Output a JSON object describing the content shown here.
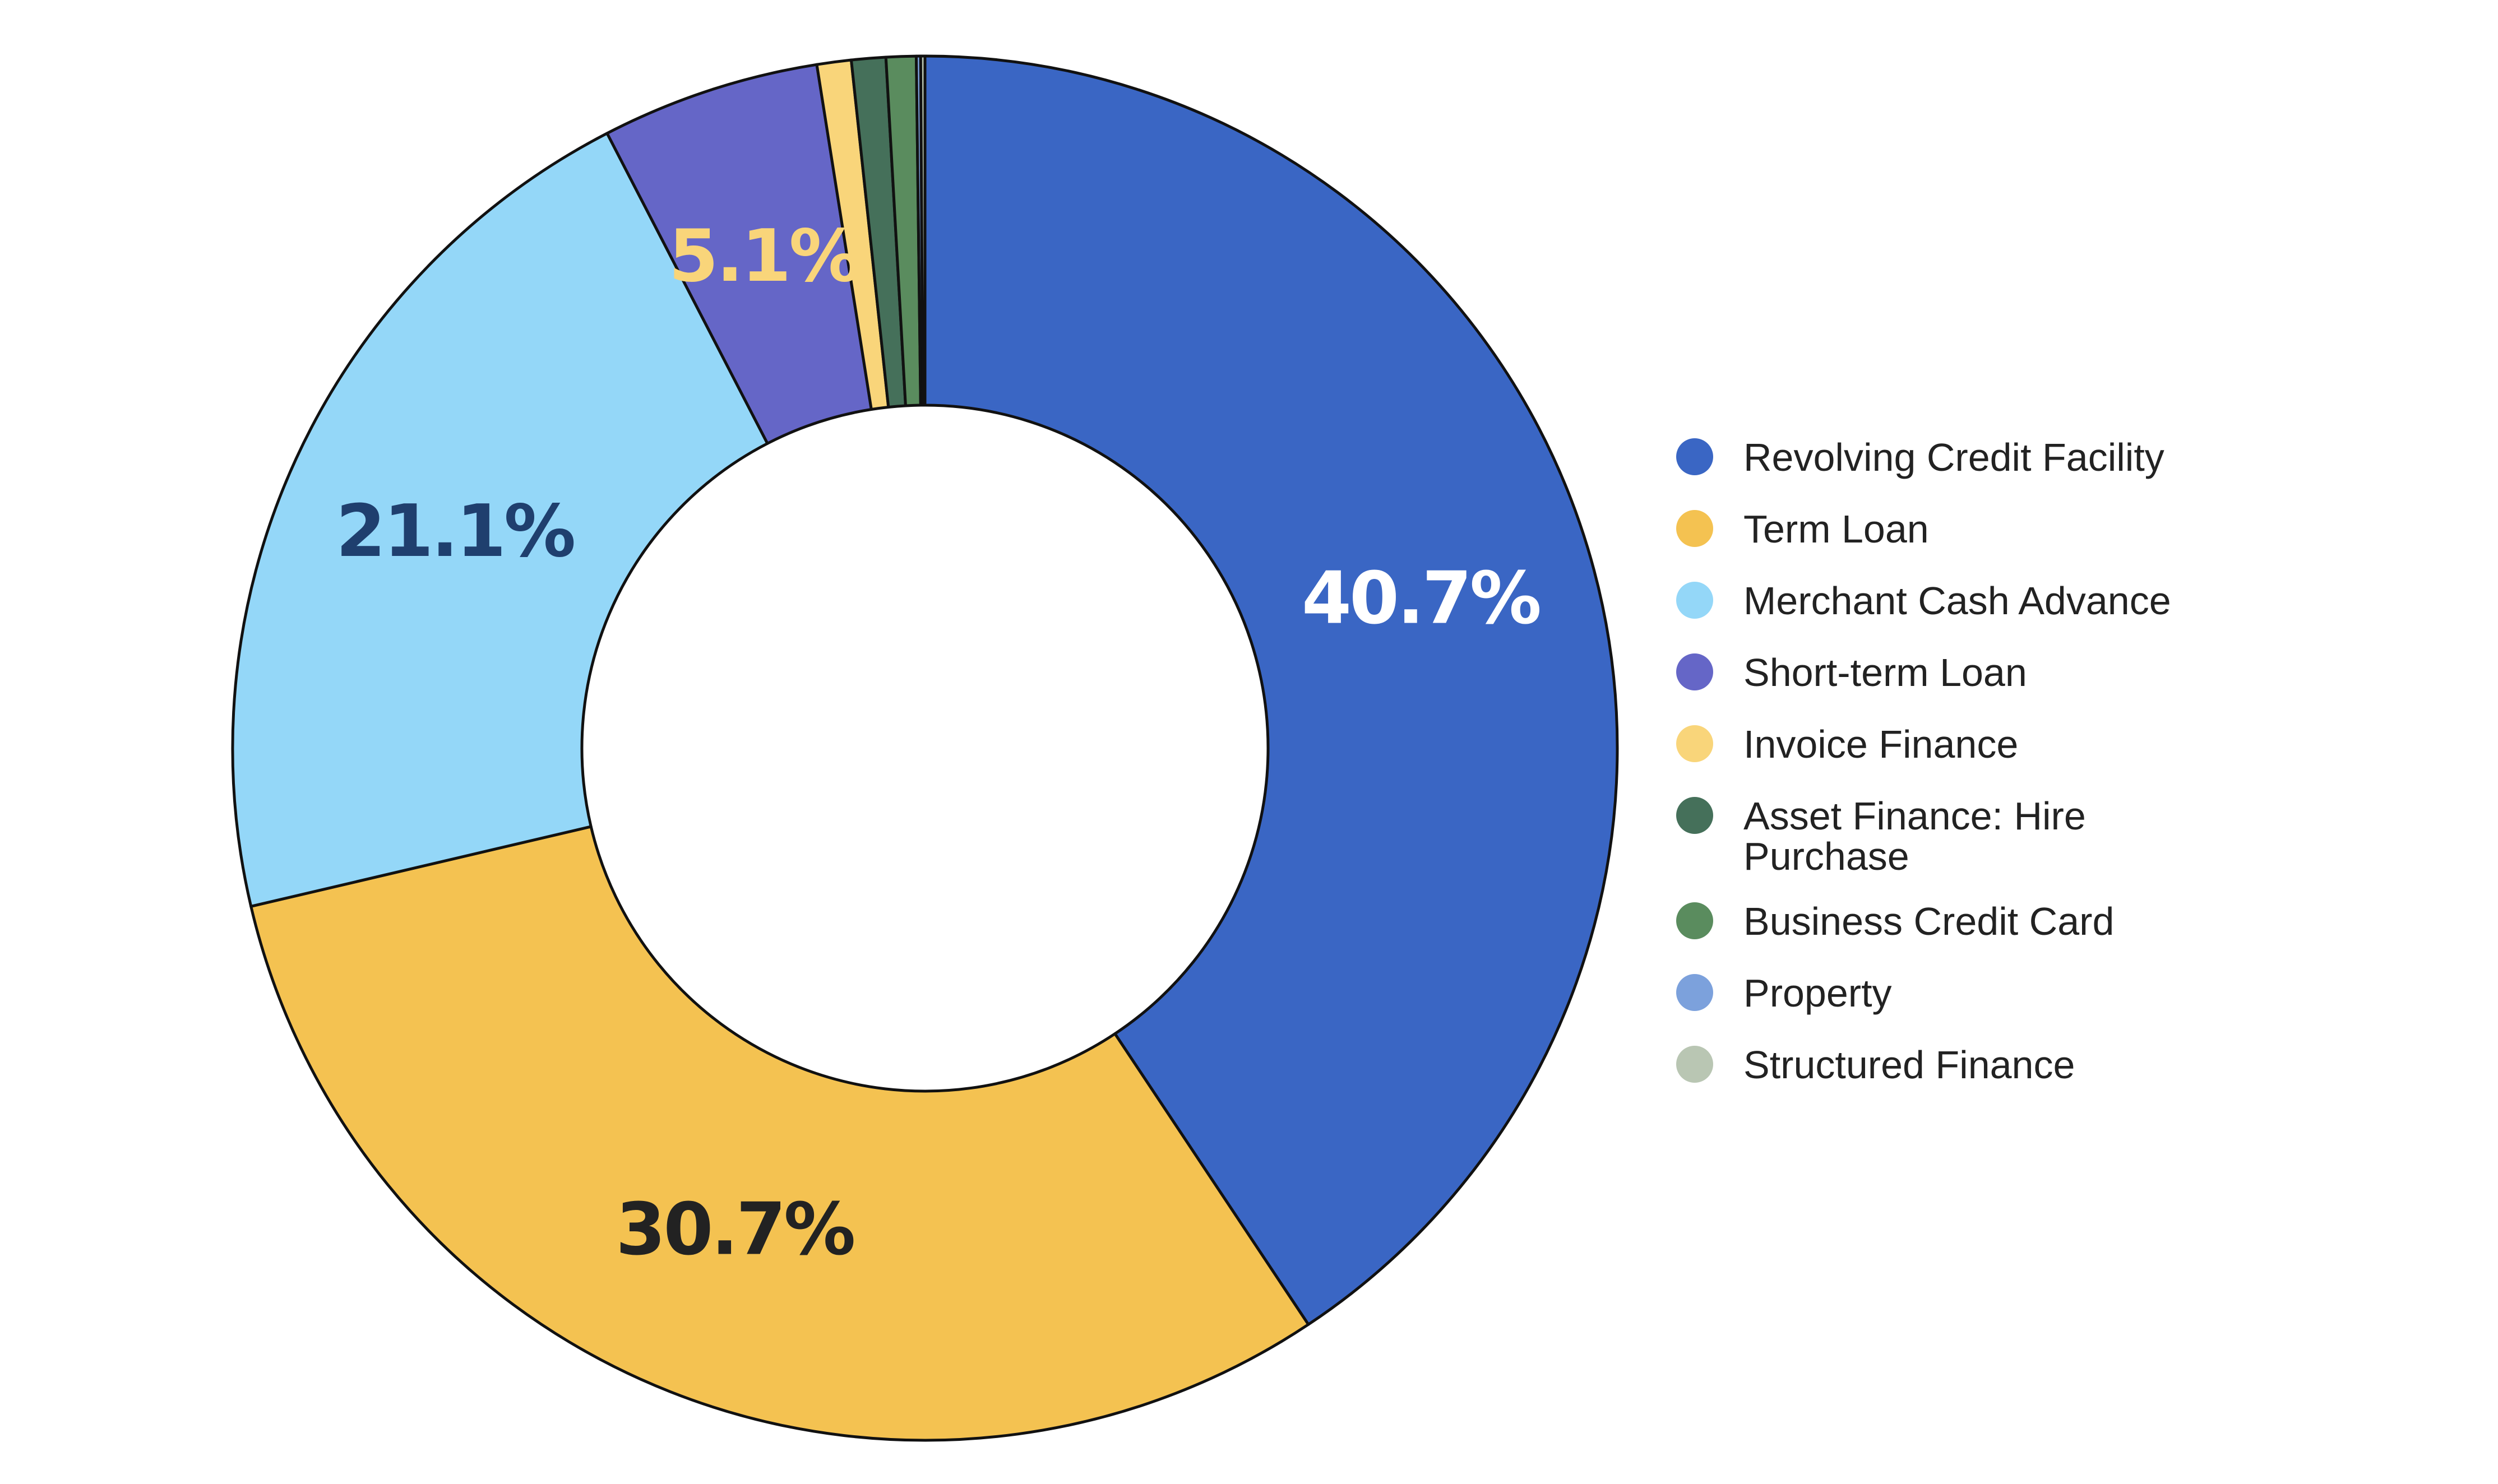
{
  "chart_data": {
    "type": "pie",
    "donut": true,
    "legend_position": "right",
    "categories": [
      "Revolving Credit Facility",
      "Term Loan",
      "Merchant Cash Advance",
      "Short-term Loan",
      "Invoice Finance",
      "Asset Finance: Hire Purchase",
      "Business Credit Card",
      "Property",
      "Structured Finance"
    ],
    "values": [
      40.7,
      30.7,
      21.1,
      5.1,
      0.8,
      0.8,
      0.7,
      0.1,
      0.1
    ],
    "colors": [
      "#3a66c4",
      "#f4c251",
      "#94d7f8",
      "#6566c7",
      "#f9d57a",
      "#45705a",
      "#5a8c5e",
      "#7ca1dc",
      "#b9c6b3"
    ],
    "data_labels": [
      {
        "index": 0,
        "text": "40.7%",
        "color": "#ffffff"
      },
      {
        "index": 1,
        "text": "30.7%",
        "color": "#222222"
      },
      {
        "index": 2,
        "text": "21.1%",
        "color": "#1f3f6e"
      },
      {
        "index": 3,
        "text": "5.1%",
        "color": "#f9d57a"
      }
    ]
  }
}
